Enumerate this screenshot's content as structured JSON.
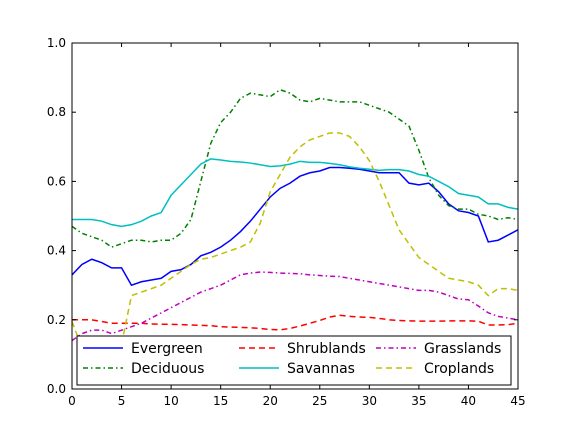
{
  "chart_data": {
    "type": "line",
    "title": "",
    "xlabel": "",
    "ylabel": "",
    "xlim": [
      0,
      45
    ],
    "ylim": [
      0.0,
      1.0
    ],
    "xticks": [
      0,
      5,
      10,
      15,
      20,
      25,
      30,
      35,
      40,
      45
    ],
    "yticks": [
      0.0,
      0.2,
      0.4,
      0.6,
      0.8,
      1.0
    ],
    "xtick_labels": [
      "0",
      "5",
      "10",
      "15",
      "20",
      "25",
      "30",
      "35",
      "40",
      "45"
    ],
    "ytick_labels": [
      "0.0",
      "0.2",
      "0.4",
      "0.6",
      "0.8",
      "1.0"
    ],
    "grid": false,
    "legend_position": "bottom",
    "x": [
      0,
      1,
      2,
      3,
      4,
      5,
      6,
      7,
      8,
      9,
      10,
      11,
      12,
      13,
      14,
      15,
      16,
      17,
      18,
      19,
      20,
      21,
      22,
      23,
      24,
      25,
      26,
      27,
      28,
      29,
      30,
      31,
      32,
      33,
      34,
      35,
      36,
      37,
      38,
      39,
      40,
      41,
      42,
      43,
      44,
      45
    ],
    "series": [
      {
        "name": "Evergreen",
        "color": "#0000ff",
        "dash": "solid",
        "values": [
          0.33,
          0.36,
          0.375,
          0.365,
          0.35,
          0.35,
          0.3,
          0.31,
          0.315,
          0.32,
          0.34,
          0.345,
          0.36,
          0.385,
          0.395,
          0.41,
          0.43,
          0.455,
          0.485,
          0.52,
          0.555,
          0.58,
          0.595,
          0.615,
          0.625,
          0.63,
          0.64,
          0.64,
          0.638,
          0.635,
          0.63,
          0.625,
          0.625,
          0.625,
          0.595,
          0.59,
          0.595,
          0.57,
          0.535,
          0.515,
          0.51,
          0.5,
          0.425,
          0.43,
          0.445,
          0.46
        ]
      },
      {
        "name": "Deciduous",
        "color": "#008000",
        "dash": "dashdot",
        "values": [
          0.47,
          0.45,
          0.44,
          0.43,
          0.41,
          0.42,
          0.43,
          0.43,
          0.425,
          0.43,
          0.43,
          0.45,
          0.49,
          0.6,
          0.71,
          0.77,
          0.8,
          0.84,
          0.855,
          0.85,
          0.845,
          0.865,
          0.855,
          0.835,
          0.83,
          0.84,
          0.835,
          0.83,
          0.83,
          0.83,
          0.82,
          0.81,
          0.8,
          0.78,
          0.76,
          0.69,
          0.61,
          0.56,
          0.53,
          0.52,
          0.52,
          0.505,
          0.5,
          0.49,
          0.495,
          0.49
        ]
      },
      {
        "name": "Shrublands",
        "color": "#ff0000",
        "dash": "dashed",
        "values": [
          0.2,
          0.2,
          0.2,
          0.195,
          0.19,
          0.19,
          0.19,
          0.19,
          0.188,
          0.187,
          0.187,
          0.186,
          0.185,
          0.184,
          0.183,
          0.18,
          0.179,
          0.178,
          0.177,
          0.175,
          0.172,
          0.171,
          0.175,
          0.182,
          0.19,
          0.198,
          0.208,
          0.213,
          0.21,
          0.208,
          0.207,
          0.204,
          0.2,
          0.198,
          0.197,
          0.196,
          0.196,
          0.196,
          0.197,
          0.197,
          0.197,
          0.196,
          0.185,
          0.185,
          0.186,
          0.19
        ]
      },
      {
        "name": "Savannas",
        "color": "#00bfbf",
        "dash": "solid",
        "values": [
          0.49,
          0.49,
          0.49,
          0.485,
          0.475,
          0.47,
          0.475,
          0.485,
          0.5,
          0.51,
          0.56,
          0.59,
          0.62,
          0.65,
          0.665,
          0.662,
          0.658,
          0.656,
          0.653,
          0.648,
          0.643,
          0.645,
          0.65,
          0.658,
          0.655,
          0.655,
          0.652,
          0.648,
          0.642,
          0.638,
          0.635,
          0.632,
          0.634,
          0.634,
          0.63,
          0.62,
          0.615,
          0.6,
          0.585,
          0.565,
          0.56,
          0.555,
          0.535,
          0.535,
          0.525,
          0.52
        ]
      },
      {
        "name": "Grasslands",
        "color": "#bf00bf",
        "dash": "dashdot",
        "values": [
          0.14,
          0.16,
          0.17,
          0.17,
          0.16,
          0.17,
          0.18,
          0.19,
          0.205,
          0.22,
          0.235,
          0.25,
          0.265,
          0.28,
          0.29,
          0.3,
          0.315,
          0.33,
          0.335,
          0.338,
          0.337,
          0.335,
          0.334,
          0.333,
          0.33,
          0.328,
          0.326,
          0.325,
          0.32,
          0.315,
          0.31,
          0.305,
          0.3,
          0.295,
          0.29,
          0.285,
          0.285,
          0.28,
          0.27,
          0.26,
          0.258,
          0.24,
          0.22,
          0.21,
          0.205,
          0.2
        ]
      },
      {
        "name": "Croplands",
        "color": "#bfbf00",
        "dash": "dashed",
        "values": [
          0.195,
          0.12,
          0.11,
          0.11,
          0.11,
          0.13,
          0.27,
          0.28,
          0.29,
          0.3,
          0.32,
          0.34,
          0.36,
          0.375,
          0.38,
          0.39,
          0.4,
          0.41,
          0.425,
          0.48,
          0.57,
          0.62,
          0.67,
          0.7,
          0.72,
          0.73,
          0.74,
          0.74,
          0.73,
          0.7,
          0.66,
          0.6,
          0.53,
          0.46,
          0.42,
          0.38,
          0.36,
          0.34,
          0.32,
          0.315,
          0.31,
          0.3,
          0.27,
          0.29,
          0.29,
          0.285
        ]
      }
    ]
  }
}
